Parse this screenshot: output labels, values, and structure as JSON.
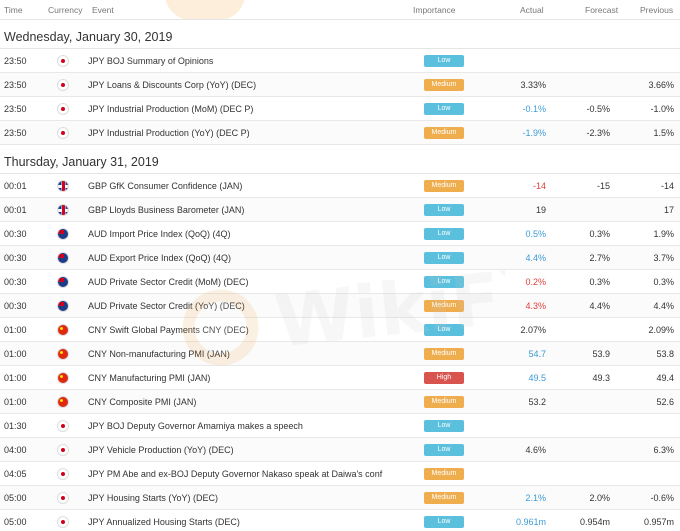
{
  "columns": {
    "time": "Time",
    "currency": "Currency",
    "event": "Event",
    "importance": "Importance",
    "actual": "Actual",
    "forecast": "Forecast",
    "previous": "Previous"
  },
  "colors": {
    "low": "#5bc0de",
    "medium": "#f0ad4e",
    "high": "#d9534f",
    "actual_better": "#3c9ad6",
    "actual_worse": "#e0403a"
  },
  "sections": [
    {
      "date": "Wednesday, January 30, 2019",
      "rows": [
        {
          "time": "23:50",
          "flag": "japan-flag-icon",
          "event": "JPY BOJ Summary of Opinions",
          "importance": "Low",
          "actual": "",
          "actual_color": "dark",
          "forecast": "",
          "previous": ""
        },
        {
          "time": "23:50",
          "flag": "japan-flag-icon",
          "event": "JPY Loans & Discounts Corp (YoY) (DEC)",
          "importance": "Medium",
          "actual": "3.33%",
          "actual_color": "dark",
          "forecast": "",
          "previous": "3.66%"
        },
        {
          "time": "23:50",
          "flag": "japan-flag-icon",
          "event": "JPY Industrial Production (MoM) (DEC P)",
          "importance": "Low",
          "actual": "-0.1%",
          "actual_color": "blue",
          "forecast": "-0.5%",
          "previous": "-1.0%"
        },
        {
          "time": "23:50",
          "flag": "japan-flag-icon",
          "event": "JPY Industrial Production (YoY) (DEC P)",
          "importance": "Medium",
          "actual": "-1.9%",
          "actual_color": "blue",
          "forecast": "-2.3%",
          "previous": "1.5%"
        }
      ]
    },
    {
      "date": "Thursday, January 31, 2019",
      "rows": [
        {
          "time": "00:01",
          "flag": "uk-flag-icon",
          "event": "GBP GfK Consumer Confidence (JAN)",
          "importance": "Medium",
          "actual": "-14",
          "actual_color": "red",
          "forecast": "-15",
          "previous": "-14"
        },
        {
          "time": "00:01",
          "flag": "uk-flag-icon",
          "event": "GBP Lloyds Business Barometer (JAN)",
          "importance": "Low",
          "actual": "19",
          "actual_color": "dark",
          "forecast": "",
          "previous": "17"
        },
        {
          "time": "00:30",
          "flag": "australia-flag-icon",
          "event": "AUD Import Price Index (QoQ) (4Q)",
          "importance": "Low",
          "actual": "0.5%",
          "actual_color": "blue",
          "forecast": "0.3%",
          "previous": "1.9%"
        },
        {
          "time": "00:30",
          "flag": "australia-flag-icon",
          "event": "AUD Export Price Index (QoQ) (4Q)",
          "importance": "Low",
          "actual": "4.4%",
          "actual_color": "blue",
          "forecast": "2.7%",
          "previous": "3.7%"
        },
        {
          "time": "00:30",
          "flag": "australia-flag-icon",
          "event": "AUD Private Sector Credit (MoM) (DEC)",
          "importance": "Low",
          "actual": "0.2%",
          "actual_color": "red",
          "forecast": "0.3%",
          "previous": "0.3%"
        },
        {
          "time": "00:30",
          "flag": "australia-flag-icon",
          "event": "AUD Private Sector Credit (YoY) (DEC)",
          "importance": "Medium",
          "actual": "4.3%",
          "actual_color": "red",
          "forecast": "4.4%",
          "previous": "4.4%"
        },
        {
          "time": "01:00",
          "flag": "china-flag-icon",
          "event": "CNY Swift Global Payments CNY (DEC)",
          "importance": "Low",
          "actual": "2.07%",
          "actual_color": "dark",
          "forecast": "",
          "previous": "2.09%"
        },
        {
          "time": "01:00",
          "flag": "china-flag-icon",
          "event": "CNY Non-manufacturing PMI (JAN)",
          "importance": "Medium",
          "actual": "54.7",
          "actual_color": "blue",
          "forecast": "53.9",
          "previous": "53.8"
        },
        {
          "time": "01:00",
          "flag": "china-flag-icon",
          "event": "CNY Manufacturing PMI (JAN)",
          "importance": "High",
          "actual": "49.5",
          "actual_color": "blue",
          "forecast": "49.3",
          "previous": "49.4"
        },
        {
          "time": "01:00",
          "flag": "china-flag-icon",
          "event": "CNY Composite PMI (JAN)",
          "importance": "Medium",
          "actual": "53.2",
          "actual_color": "dark",
          "forecast": "",
          "previous": "52.6"
        },
        {
          "time": "01:30",
          "flag": "japan-flag-icon",
          "event": "JPY BOJ Deputy Governor Amamiya makes a speech",
          "importance": "Low",
          "actual": "",
          "actual_color": "dark",
          "forecast": "",
          "previous": ""
        },
        {
          "time": "04:00",
          "flag": "japan-flag-icon",
          "event": "JPY Vehicle Production (YoY) (DEC)",
          "importance": "Low",
          "actual": "4.6%",
          "actual_color": "dark",
          "forecast": "",
          "previous": "6.3%"
        },
        {
          "time": "04:05",
          "flag": "japan-flag-icon",
          "event": "JPY PM Abe and ex-BOJ Deputy Governor Nakaso speak at Daiwa's conf",
          "importance": "Medium",
          "actual": "",
          "actual_color": "dark",
          "forecast": "",
          "previous": ""
        },
        {
          "time": "05:00",
          "flag": "japan-flag-icon",
          "event": "JPY Housing Starts (YoY) (DEC)",
          "importance": "Medium",
          "actual": "2.1%",
          "actual_color": "blue",
          "forecast": "2.0%",
          "previous": "-0.6%"
        },
        {
          "time": "05:00",
          "flag": "japan-flag-icon",
          "event": "JPY Annualized Housing Starts (DEC)",
          "importance": "Low",
          "actual": "0.961m",
          "actual_color": "blue",
          "forecast": "0.954m",
          "previous": "0.957m"
        }
      ]
    }
  ],
  "watermark": "WikiFX"
}
